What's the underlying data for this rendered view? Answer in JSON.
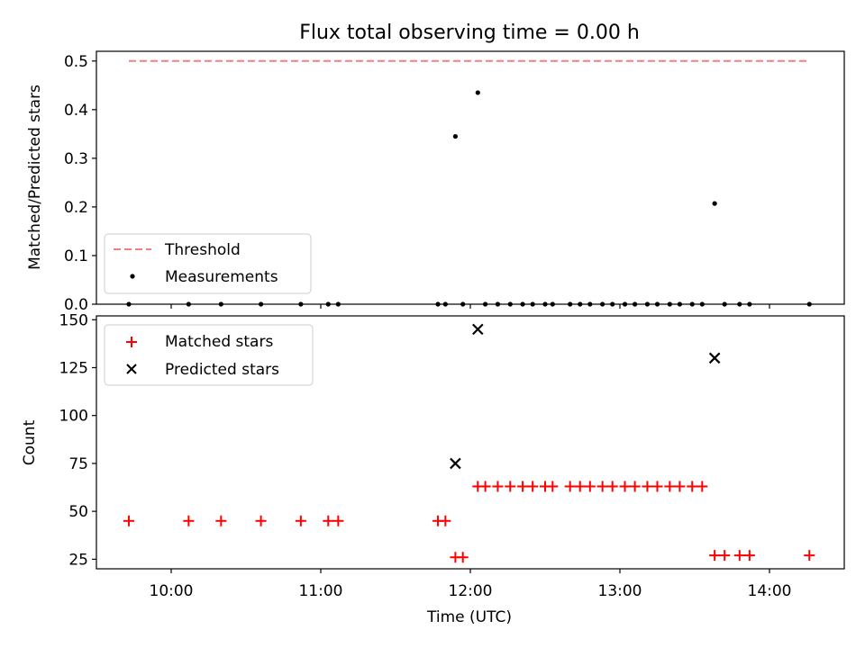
{
  "title": "Flux total observing time = 0.00 h",
  "chart_data": [
    {
      "type": "scatter",
      "ylabel": "Matched/Predicted stars",
      "xlim": [
        "09:30",
        "14:30"
      ],
      "ylim": [
        0,
        0.52
      ],
      "yticks": [
        "0.0",
        "0.1",
        "0.2",
        "0.3",
        "0.4",
        "0.5"
      ],
      "threshold": {
        "name": "Threshold",
        "value": 0.5,
        "x_start": "09:43",
        "x_end": "14:16",
        "color": "#f08080"
      },
      "series": [
        {
          "name": "Measurements",
          "marker": "dot",
          "color": "#000000",
          "points": [
            [
              "09:43",
              0
            ],
            [
              "10:07",
              0
            ],
            [
              "10:20",
              0
            ],
            [
              "10:36",
              0
            ],
            [
              "10:52",
              0
            ],
            [
              "11:03",
              0
            ],
            [
              "11:07",
              0
            ],
            [
              "11:47",
              0
            ],
            [
              "11:50",
              0
            ],
            [
              "11:54",
              0.345
            ],
            [
              "11:57",
              0
            ],
            [
              "12:03",
              0.435
            ],
            [
              "12:06",
              0
            ],
            [
              "12:11",
              0
            ],
            [
              "12:16",
              0
            ],
            [
              "12:21",
              0
            ],
            [
              "12:25",
              0
            ],
            [
              "12:30",
              0
            ],
            [
              "12:33",
              0
            ],
            [
              "12:40",
              0
            ],
            [
              "12:44",
              0
            ],
            [
              "12:48",
              0
            ],
            [
              "12:53",
              0
            ],
            [
              "12:57",
              0
            ],
            [
              "13:02",
              0
            ],
            [
              "13:06",
              0
            ],
            [
              "13:11",
              0
            ],
            [
              "13:15",
              0
            ],
            [
              "13:20",
              0
            ],
            [
              "13:24",
              0
            ],
            [
              "13:29",
              0
            ],
            [
              "13:33",
              0
            ],
            [
              "13:38",
              0.207
            ],
            [
              "13:42",
              0
            ],
            [
              "13:48",
              0
            ],
            [
              "13:52",
              0
            ],
            [
              "14:16",
              0
            ]
          ]
        }
      ]
    },
    {
      "type": "scatter",
      "xlabel": "Time (UTC)",
      "ylabel": "Count",
      "xlim": [
        "09:30",
        "14:30"
      ],
      "ylim": [
        20,
        152
      ],
      "xticks": [
        "10:00",
        "11:00",
        "12:00",
        "13:00",
        "14:00"
      ],
      "yticks": [
        "25",
        "50",
        "75",
        "100",
        "125",
        "150"
      ],
      "series": [
        {
          "name": "Matched stars",
          "marker": "plus",
          "color": "#ff0000",
          "points": [
            [
              "09:43",
              45
            ],
            [
              "10:07",
              45
            ],
            [
              "10:20",
              45
            ],
            [
              "10:36",
              45
            ],
            [
              "10:52",
              45
            ],
            [
              "11:03",
              45
            ],
            [
              "11:07",
              45
            ],
            [
              "11:47",
              45
            ],
            [
              "11:50",
              45
            ],
            [
              "11:54",
              26
            ],
            [
              "11:57",
              26
            ],
            [
              "12:03",
              63
            ],
            [
              "12:06",
              63
            ],
            [
              "12:11",
              63
            ],
            [
              "12:16",
              63
            ],
            [
              "12:21",
              63
            ],
            [
              "12:25",
              63
            ],
            [
              "12:30",
              63
            ],
            [
              "12:33",
              63
            ],
            [
              "12:40",
              63
            ],
            [
              "12:44",
              63
            ],
            [
              "12:48",
              63
            ],
            [
              "12:53",
              63
            ],
            [
              "12:57",
              63
            ],
            [
              "13:02",
              63
            ],
            [
              "13:06",
              63
            ],
            [
              "13:11",
              63
            ],
            [
              "13:15",
              63
            ],
            [
              "13:20",
              63
            ],
            [
              "13:24",
              63
            ],
            [
              "13:29",
              63
            ],
            [
              "13:33",
              63
            ],
            [
              "13:38",
              27
            ],
            [
              "13:42",
              27
            ],
            [
              "13:48",
              27
            ],
            [
              "13:52",
              27
            ],
            [
              "14:16",
              27
            ]
          ]
        },
        {
          "name": "Predicted stars",
          "marker": "x",
          "color": "#000000",
          "points": [
            [
              "11:54",
              75
            ],
            [
              "12:03",
              145
            ],
            [
              "13:38",
              130
            ]
          ]
        }
      ]
    }
  ]
}
